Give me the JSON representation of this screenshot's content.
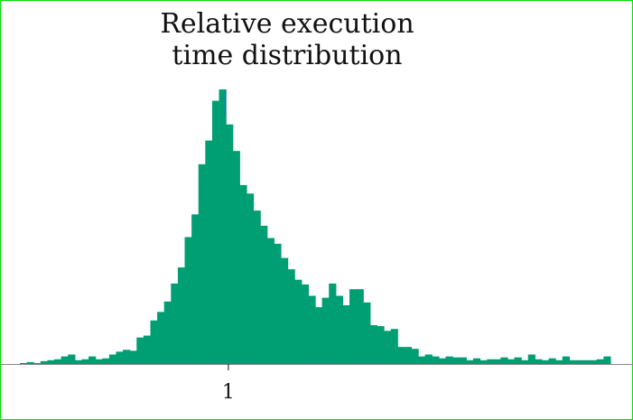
{
  "chart_data": {
    "type": "bar",
    "title": [
      "Relative execution",
      "time distribution"
    ],
    "xlabel": "",
    "ylabel": "",
    "x_ticks": [
      {
        "value": 1,
        "label": "1"
      }
    ],
    "bin_start": -0.38,
    "bin_width": 0.04545,
    "values": [
      1,
      2,
      1,
      3,
      4,
      5,
      8,
      10,
      4,
      5,
      8,
      5,
      6,
      10,
      13,
      15,
      14,
      28,
      30,
      46,
      55,
      66,
      85,
      102,
      134,
      158,
      211,
      236,
      278,
      290,
      253,
      225,
      189,
      180,
      162,
      146,
      133,
      127,
      112,
      100,
      89,
      84,
      72,
      60,
      70,
      85,
      72,
      62,
      79,
      79,
      65,
      41,
      40,
      35,
      37,
      18,
      18,
      16,
      8,
      10,
      8,
      6,
      8,
      7,
      7,
      4,
      6,
      4,
      5,
      5,
      7,
      5,
      7,
      4,
      10,
      5,
      4,
      6,
      4,
      8,
      4,
      4,
      4,
      4,
      5,
      8
    ],
    "ylim": [
      0,
      290
    ],
    "grid": false,
    "legend": "none",
    "colors": {
      "fill": "#009e73",
      "stroke": "#1f77b4",
      "axis": "#888888"
    }
  }
}
